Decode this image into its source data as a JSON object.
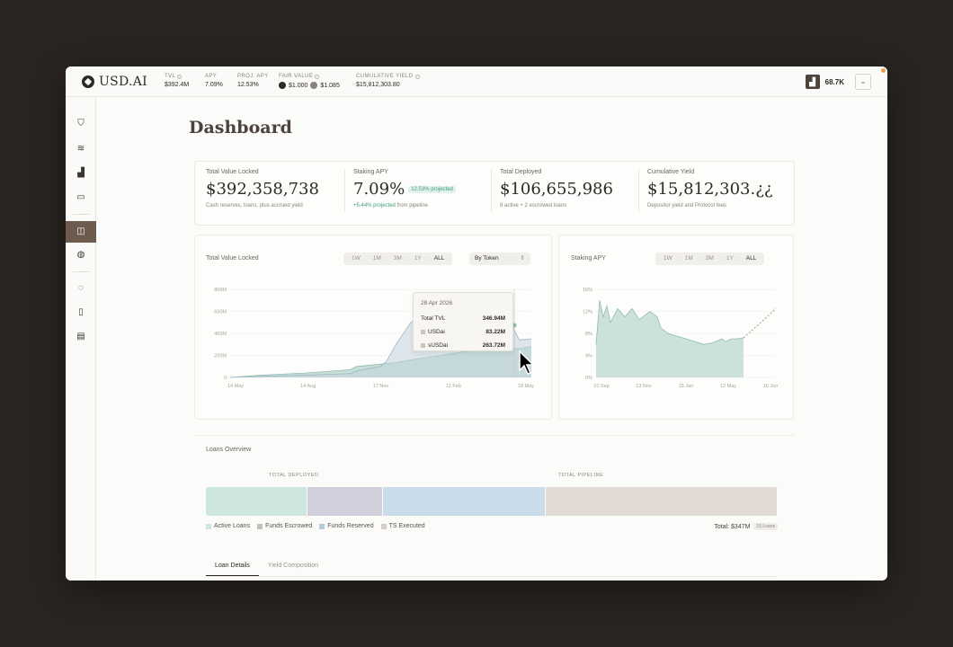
{
  "header": {
    "logo": "USD.AI",
    "metrics": [
      {
        "label": "TVL",
        "value": "$392.4M",
        "info": true
      },
      {
        "label": "APY",
        "value": "7.09%",
        "info": false
      },
      {
        "label": "PROJ. APY",
        "value": "12.53%",
        "info": false
      },
      {
        "label": "FAIR VALUE",
        "value_a": "$1.000",
        "value_b": "$1.085",
        "info": true
      },
      {
        "label": "CUMULATIVE YIELD",
        "value": "$15,812,303.80",
        "info": true
      }
    ],
    "account_value": "68.7K"
  },
  "sidebar": {
    "items": [
      {
        "icon": "shield-icon",
        "glyph": "⛉"
      },
      {
        "icon": "signal-icon",
        "glyph": "≋"
      },
      {
        "icon": "chart-icon",
        "glyph": "▟"
      },
      {
        "icon": "folder-icon",
        "glyph": "▭"
      },
      {
        "icon": "dashboard-icon",
        "glyph": "◫",
        "active": true
      },
      {
        "icon": "globe-icon",
        "glyph": "◍"
      },
      {
        "icon": "lightbulb-icon",
        "glyph": "◌"
      },
      {
        "icon": "document-icon",
        "glyph": "▯"
      },
      {
        "icon": "report-icon",
        "glyph": "▤"
      }
    ]
  },
  "page": {
    "title": "Dashboard"
  },
  "stats": [
    {
      "label": "Total Value Locked",
      "value": "$392,358,738",
      "sub": "Cash reserves, loans, plus accrued yield"
    },
    {
      "label": "Staking APY",
      "value": "7.09%",
      "badge": "12.53% projected",
      "sub_green": "+5.44% projected",
      "sub": "from pipeline"
    },
    {
      "label": "Total Deployed",
      "value": "$106,655,986",
      "sub": "9 active + 2 escrowed loans"
    },
    {
      "label": "Cumulative Yield",
      "value": "$15,812,303.¿¿",
      "sub": "Depositor yield and Protocol fees"
    }
  ],
  "tvl_chart": {
    "title": "Total Value Locked",
    "ranges": [
      "1W",
      "1M",
      "3M",
      "1Y",
      "ALL"
    ],
    "active_range": "ALL",
    "group_by": "By Token",
    "tooltip": {
      "date": "28 Apr 2026",
      "rows": [
        {
          "label": "Total TVL",
          "value": "346.94M"
        },
        {
          "label": "USDai",
          "value": "83.22M"
        },
        {
          "label": "sUSDai",
          "value": "263.72M"
        }
      ]
    }
  },
  "apy_chart": {
    "title": "Staking APY",
    "ranges": [
      "1W",
      "1M",
      "3M",
      "1Y",
      "ALL"
    ],
    "active_range": "ALL"
  },
  "chart_data": [
    {
      "type": "area",
      "title": "Total Value Locked",
      "x_ticks": [
        "14 May",
        "14 Aug",
        "17 Nov",
        "12 Feb",
        "18 May"
      ],
      "y_ticks": [
        "0",
        "200M",
        "400M",
        "600M",
        "800M"
      ],
      "ylim": [
        0,
        800
      ],
      "series": [
        {
          "name": "USDai",
          "x": [
            0,
            0.1,
            0.25,
            0.3,
            0.4,
            0.42,
            0.5,
            0.55,
            0.6,
            0.7,
            0.77,
            0.8,
            0.83,
            0.87,
            0.9,
            0.93,
            0.96,
            1.0
          ],
          "y": [
            0,
            20,
            40,
            50,
            70,
            100,
            120,
            135,
            160,
            200,
            230,
            240,
            250,
            250,
            240,
            270,
            260,
            280
          ]
        },
        {
          "name": "sUSDai",
          "x": [
            0,
            0.1,
            0.25,
            0.3,
            0.4,
            0.42,
            0.5,
            0.52,
            0.55,
            0.6,
            0.65,
            0.7,
            0.8,
            0.85,
            0.9,
            0.93,
            0.96,
            1.0
          ],
          "y": [
            0,
            10,
            20,
            25,
            35,
            60,
            100,
            150,
            300,
            500,
            580,
            640,
            660,
            600,
            580,
            500,
            340,
            350
          ]
        }
      ]
    },
    {
      "type": "area",
      "title": "Staking APY",
      "x_ticks": [
        "10 Sep",
        "13 Nov",
        "15 Jan",
        "12 May",
        "16 Jun"
      ],
      "y_ticks": [
        "0%",
        "4%",
        "8%",
        "12%",
        "16%"
      ],
      "ylim": [
        0,
        16
      ],
      "series": [
        {
          "name": "APY",
          "x": [
            0,
            0.02,
            0.04,
            0.06,
            0.08,
            0.12,
            0.16,
            0.2,
            0.24,
            0.28,
            0.3,
            0.34,
            0.36,
            0.4,
            0.45,
            0.5,
            0.55,
            0.6,
            0.65,
            0.7,
            0.72,
            0.75,
            0.78,
            0.82
          ],
          "y": [
            6,
            14,
            11,
            13,
            10,
            12.5,
            11,
            12.5,
            10.5,
            11.5,
            12,
            11,
            9,
            8,
            7.5,
            7,
            6.5,
            6,
            6.3,
            7,
            6.5,
            7,
            7,
            7.2
          ]
        },
        {
          "name": "Projected",
          "x": [
            0.82,
            0.9,
            1.0
          ],
          "y": [
            7.2,
            9.5,
            12.5
          ]
        }
      ]
    }
  ],
  "loans": {
    "title": "Loans Overview",
    "deployed_label": "TOTAL DEPLOYED",
    "pipeline_label": "TOTAL PIPELINE",
    "segments": [
      {
        "name": "Active Loans",
        "share": 0.178,
        "color": "#cfe6de"
      },
      {
        "name": "Funds Escrowed",
        "share": 0.132,
        "color": "#d2cfdc"
      },
      {
        "name": "Funds Reserved",
        "share": 0.285,
        "color": "#cadcea"
      },
      {
        "name": "TS Executed",
        "share": 0.405,
        "color": "#e2dbd5"
      }
    ],
    "total": "Total: $347M",
    "total_chip": "15 Loans"
  },
  "tabs": [
    {
      "label": "Loan Details",
      "active": true
    },
    {
      "label": "Yield Composition",
      "active": false
    }
  ]
}
